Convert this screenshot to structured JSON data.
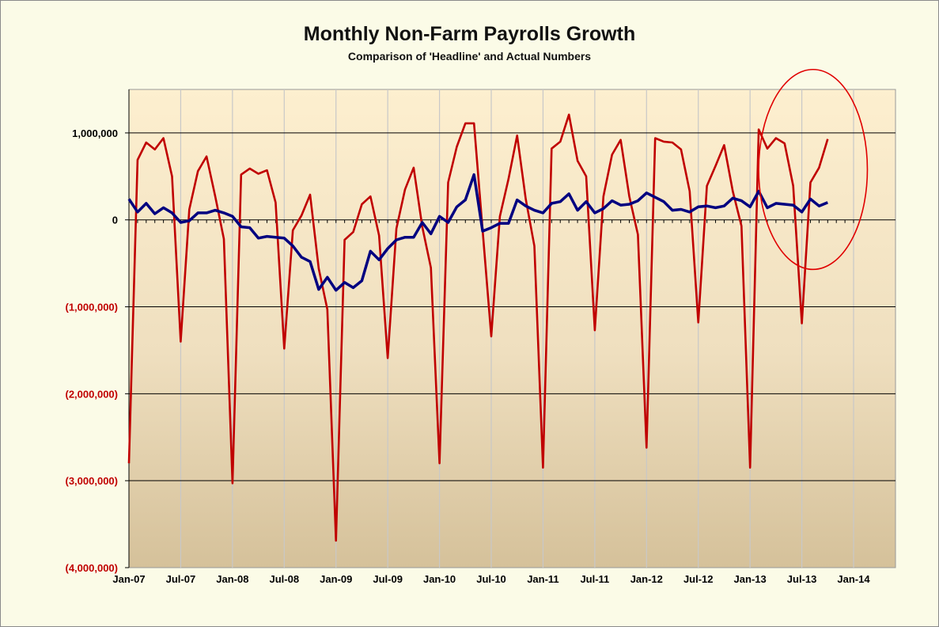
{
  "chart_data": {
    "type": "line",
    "title": "Monthly Non-Farm Payrolls Growth",
    "subtitle": "Comparison of 'Headline' and Actual Numbers",
    "xlabel": "",
    "ylabel": "",
    "ylim": [
      -4000000,
      1500000
    ],
    "y_ticks": [
      {
        "value": 1000000,
        "label": "1,000,000"
      },
      {
        "value": 0,
        "label": "0"
      },
      {
        "value": -1000000,
        "label": "(1,000,000)"
      },
      {
        "value": -2000000,
        "label": "(2,000,000)"
      },
      {
        "value": -3000000,
        "label": "(3,000,000)"
      },
      {
        "value": -4000000,
        "label": "(4,000,000)"
      }
    ],
    "x_start": "Jan-07",
    "x_months_total": 84,
    "x_tick_labels": [
      "Jan-07",
      "Jul-07",
      "Jan-08",
      "Jul-08",
      "Jan-09",
      "Jul-09",
      "Jan-10",
      "Jul-10",
      "Jan-11",
      "Jul-11",
      "Jan-12",
      "Jul-12",
      "Jan-13",
      "Jul-13",
      "Jan-14"
    ],
    "grid": {
      "horizontal": true,
      "vertical": true
    },
    "colors": {
      "actual": "#c00000",
      "headline": "#000080",
      "negative_label": "#c00000",
      "positive_label": "#000000",
      "highlight_circle": "#e00000"
    },
    "series": [
      {
        "id": "actual",
        "values": [
          -2800000,
          690000,
          890000,
          810000,
          940000,
          500000,
          -1400000,
          120000,
          560000,
          730000,
          270000,
          -220000,
          -3030000,
          520000,
          590000,
          530000,
          570000,
          200000,
          -1480000,
          -120000,
          50000,
          290000,
          -560000,
          -1030000,
          -3690000,
          -230000,
          -140000,
          180000,
          270000,
          -180000,
          -1590000,
          -100000,
          350000,
          600000,
          -80000,
          -550000,
          -2800000,
          430000,
          840000,
          1110000,
          1110000,
          -120000,
          -1340000,
          40000,
          470000,
          970000,
          240000,
          -300000,
          -2850000,
          820000,
          900000,
          1210000,
          680000,
          500000,
          -1270000,
          270000,
          750000,
          920000,
          270000,
          -170000,
          -2620000,
          940000,
          900000,
          890000,
          810000,
          330000,
          -1180000,
          390000,
          620000,
          860000,
          330000,
          -70000,
          -2850000,
          1040000,
          820000,
          940000,
          880000,
          390000,
          -1190000,
          430000,
          600000,
          930000
        ]
      },
      {
        "id": "headline",
        "values": [
          240000,
          90000,
          190000,
          70000,
          140000,
          80000,
          -30000,
          -10000,
          80000,
          80000,
          110000,
          80000,
          40000,
          -80000,
          -90000,
          -210000,
          -190000,
          -200000,
          -210000,
          -300000,
          -430000,
          -480000,
          -800000,
          -660000,
          -810000,
          -720000,
          -780000,
          -700000,
          -360000,
          -460000,
          -330000,
          -230000,
          -200000,
          -200000,
          -30000,
          -160000,
          40000,
          -30000,
          150000,
          230000,
          520000,
          -130000,
          -90000,
          -40000,
          -40000,
          230000,
          160000,
          110000,
          80000,
          190000,
          210000,
          300000,
          110000,
          210000,
          80000,
          130000,
          220000,
          170000,
          180000,
          220000,
          310000,
          260000,
          210000,
          110000,
          120000,
          90000,
          150000,
          160000,
          140000,
          160000,
          250000,
          220000,
          150000,
          330000,
          140000,
          190000,
          180000,
          170000,
          90000,
          240000,
          160000,
          200000
        ]
      }
    ],
    "annotations": [
      {
        "type": "ellipse",
        "description_shape": "highlight circle around latest months",
        "x_month_index": 79.3,
        "y_value": 580000,
        "rx_months": 6.3,
        "ry_value": 1150000
      }
    ]
  }
}
